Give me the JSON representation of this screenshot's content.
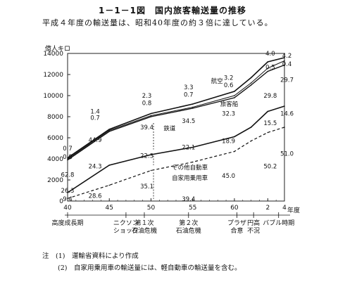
{
  "title": "1－1－1図　国内旅客輸送量の推移",
  "subtitle": "平成４年度の輸送量は、昭和40年度の約３倍に達している。",
  "chart_data": {
    "type": "area",
    "ylabel": "億人キロ",
    "xlabel": "年度",
    "ylim": [
      0,
      14000
    ],
    "y_ticks": [
      "0",
      "2000",
      "4000",
      "6000",
      "8000",
      "10000",
      "12000",
      "14000"
    ],
    "x_ticks": [
      "40",
      "45",
      "50",
      "55",
      "60",
      "2",
      "4"
    ],
    "x": [
      40,
      45,
      50,
      55,
      60,
      62,
      64,
      66
    ],
    "series": [
      {
        "name": "自家用乗用車",
        "values": [
          250,
          1500,
          2900,
          3700,
          4700,
          5700,
          6500,
          7000
        ]
      },
      {
        "name": "その他自動車",
        "values": [
          800,
          3400,
          4400,
          5100,
          6100,
          7000,
          8500,
          9000
        ]
      },
      {
        "name": "鉄道",
        "values": [
          3900,
          6600,
          8000,
          8800,
          9800,
          11000,
          12300,
          12900
        ]
      },
      {
        "name": "旅客船",
        "values": [
          4000,
          6700,
          8100,
          8900,
          10000,
          11200,
          12600,
          13300
        ]
      },
      {
        "name": "航空",
        "values": [
          4100,
          6800,
          8300,
          9200,
          10400,
          11700,
          13200,
          13600
        ]
      }
    ],
    "share_labels": [
      {
        "text": "0.7",
        "x": 40,
        "y": 5000
      },
      {
        "text": "0.8",
        "x": 40,
        "y": 4200
      },
      {
        "text": "62.8",
        "x": 40,
        "y": 2500
      },
      {
        "text": "26.3",
        "x": 40,
        "y": 1000
      },
      {
        "text": "9.4",
        "x": 40,
        "y": 200
      },
      {
        "text": "1.4",
        "x": 43.3,
        "y": 8500
      },
      {
        "text": "0.7",
        "x": 43.3,
        "y": 7900
      },
      {
        "text": "44.9",
        "x": 43.3,
        "y": 5800
      },
      {
        "text": "24.3",
        "x": 43.3,
        "y": 3300
      },
      {
        "text": "28.6",
        "x": 43.3,
        "y": 500
      },
      {
        "text": "2.3",
        "x": 49.5,
        "y": 10000
      },
      {
        "text": "0.8",
        "x": 49.5,
        "y": 9300
      },
      {
        "text": "39.4",
        "x": 49.5,
        "y": 7000
      },
      {
        "text": "22.3",
        "x": 49.5,
        "y": 4300
      },
      {
        "text": "35.1",
        "x": 49.5,
        "y": 1400
      },
      {
        "text": "3.3",
        "x": 54.5,
        "y": 10800
      },
      {
        "text": "0.7",
        "x": 54.5,
        "y": 10100
      },
      {
        "text": "34.5",
        "x": 54.5,
        "y": 7600
      },
      {
        "text": "22.1",
        "x": 54.5,
        "y": 5100
      },
      {
        "text": "39.4",
        "x": 54.5,
        "y": 200
      },
      {
        "text": "3.2",
        "x": 59.3,
        "y": 11700
      },
      {
        "text": "0.6",
        "x": 59.3,
        "y": 11000
      },
      {
        "text": "32.3",
        "x": 59.3,
        "y": 8300
      },
      {
        "text": "18.9",
        "x": 59.3,
        "y": 5700
      },
      {
        "text": "45.0",
        "x": 59.3,
        "y": 2400
      },
      {
        "text": "4.0",
        "x": 64.3,
        "y": 14000
      },
      {
        "text": "0.5",
        "x": 64.3,
        "y": 12700
      },
      {
        "text": "29.8",
        "x": 64.3,
        "y": 10000
      },
      {
        "text": "15.5",
        "x": 64.3,
        "y": 7400
      },
      {
        "text": "50.2",
        "x": 64.3,
        "y": 3300
      },
      {
        "text": "4.2",
        "x": 66.3,
        "y": 13800
      },
      {
        "text": "0.4",
        "x": 66.3,
        "y": 13000
      },
      {
        "text": "29.7",
        "x": 66.3,
        "y": 11500
      },
      {
        "text": "14.6",
        "x": 66.3,
        "y": 8300
      },
      {
        "text": "51.0",
        "x": 66.3,
        "y": 4500
      }
    ],
    "series_labels": [
      {
        "text": "航空",
        "x": 57.2,
        "y": 11400
      },
      {
        "text": "旅客船",
        "x": 58.3,
        "y": 9200
      },
      {
        "text": "鉄道",
        "x": 51.5,
        "y": 6900
      },
      {
        "text": "その他自動車",
        "x": 52.5,
        "y": 3200
      },
      {
        "text": "自家用乗用車",
        "x": 52.5,
        "y": 2200
      }
    ],
    "events": [
      {
        "x": 40,
        "lines": [
          "高度成長期"
        ]
      },
      {
        "x": 47,
        "lines": [
          "ニクソン",
          "ショック"
        ]
      },
      {
        "x": 49.2,
        "lines": [
          "第１次",
          "石油危機"
        ]
      },
      {
        "x": 54.5,
        "lines": [
          "第２次",
          "石油危機"
        ]
      },
      {
        "x": 60.3,
        "lines": [
          "プラザ",
          "合意"
        ]
      },
      {
        "x": 62.3,
        "lines": [
          "円高",
          "不況"
        ]
      },
      {
        "x": 65.3,
        "lines": [
          "バブル時期"
        ]
      }
    ]
  },
  "notes": [
    "注　(1)　運輸省資料により作成",
    "(2)　自家用乗用車の輸送量には、軽自動車の輸送量を含む。"
  ]
}
